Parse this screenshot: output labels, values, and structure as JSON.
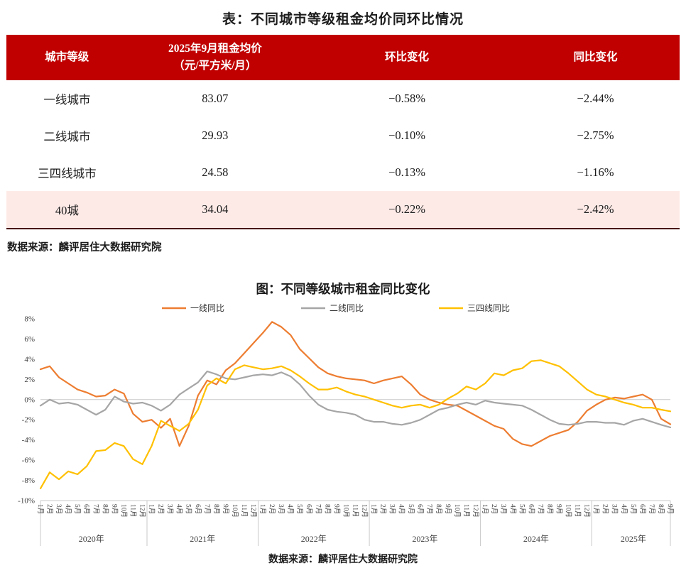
{
  "table": {
    "title": "表：不同城市等级租金均价同环比情况",
    "columns": [
      {
        "label": "城市等级"
      },
      {
        "label": "2025年9月租金均价",
        "sublabel": "（元/平方米/月）"
      },
      {
        "label": "环比变化"
      },
      {
        "label": "同比变化"
      }
    ],
    "rows": [
      {
        "tier": "一线城市",
        "price": "83.07",
        "mom": "−0.58%",
        "yoy": "−2.44%"
      },
      {
        "tier": "二线城市",
        "price": "29.93",
        "mom": "−0.10%",
        "yoy": "−2.75%"
      },
      {
        "tier": "三四线城市",
        "price": "24.58",
        "mom": "−0.13%",
        "yoy": "−1.16%"
      },
      {
        "tier": "40城",
        "price": "34.04",
        "mom": "−0.22%",
        "yoy": "−2.42%"
      }
    ],
    "source": "数据来源：麟评居住大数据研究院"
  },
  "chart_data": {
    "type": "line",
    "title": "图：不同等级城市租金同比变化",
    "source": "数据来源：麟评居住大数据研究院",
    "ylim": [
      -10,
      8
    ],
    "y_ticks": [
      8,
      6,
      4,
      2,
      0,
      -2,
      -4,
      -6,
      -8,
      -10
    ],
    "y_tick_suffix": "%",
    "grid": "zero-line-only",
    "legend_position": "top",
    "x_labels": [
      "1月",
      "2月",
      "3月",
      "4月",
      "5月",
      "6月",
      "7月",
      "8月",
      "9月",
      "10月",
      "11月",
      "12月",
      "1月",
      "2月",
      "3月",
      "4月",
      "5月",
      "6月",
      "7月",
      "8月",
      "9月",
      "10月",
      "11月",
      "12月",
      "1月",
      "2月",
      "3月",
      "4月",
      "5月",
      "6月",
      "7月",
      "8月",
      "9月",
      "10月",
      "11月",
      "12月",
      "1月",
      "2月",
      "3月",
      "4月",
      "5月",
      "6月",
      "7月",
      "8月",
      "9月",
      "10月",
      "11月",
      "12月",
      "1月",
      "2月",
      "3月",
      "4月",
      "5月",
      "6月",
      "7月",
      "8月",
      "9月",
      "10月",
      "11月",
      "12月",
      "1月",
      "2月",
      "3月",
      "4月",
      "5月",
      "6月",
      "7月",
      "8月",
      "9月"
    ],
    "years": [
      {
        "label": "2020年",
        "months": 12
      },
      {
        "label": "2021年",
        "months": 12
      },
      {
        "label": "2022年",
        "months": 12
      },
      {
        "label": "2023年",
        "months": 12
      },
      {
        "label": "2024年",
        "months": 12
      },
      {
        "label": "2025年",
        "months": 9
      }
    ],
    "series": [
      {
        "name": "一线同比",
        "color": "#ED7D31",
        "values": [
          3.0,
          3.3,
          2.2,
          1.6,
          1.0,
          0.7,
          0.3,
          0.4,
          1.0,
          0.6,
          -1.4,
          -2.2,
          -2.0,
          -2.8,
          -1.9,
          -4.6,
          -2.6,
          0.4,
          1.9,
          1.5,
          2.9,
          3.6,
          4.6,
          5.6,
          6.6,
          7.7,
          7.2,
          6.4,
          5.0,
          4.1,
          3.2,
          2.6,
          2.3,
          2.1,
          2.0,
          1.9,
          1.6,
          1.9,
          2.1,
          2.3,
          1.5,
          0.5,
          0.0,
          -0.3,
          -0.5,
          -0.6,
          -1.1,
          -1.6,
          -2.1,
          -2.6,
          -2.9,
          -3.9,
          -4.4,
          -4.6,
          -4.1,
          -3.6,
          -3.3,
          -3.0,
          -2.2,
          -1.1,
          -0.5,
          0.0,
          0.2,
          0.1,
          0.3,
          0.5,
          0.0,
          -1.9,
          -2.44
        ]
      },
      {
        "name": "二线同比",
        "color": "#A6A6A6",
        "values": [
          -0.6,
          0.0,
          -0.4,
          -0.3,
          -0.5,
          -1.0,
          -1.5,
          -1.0,
          0.3,
          -0.2,
          -0.4,
          -0.3,
          -0.6,
          -1.1,
          -0.5,
          0.5,
          1.1,
          1.7,
          2.8,
          2.5,
          2.1,
          2.0,
          2.2,
          2.4,
          2.5,
          2.4,
          2.7,
          2.3,
          1.5,
          0.4,
          -0.5,
          -1.0,
          -1.2,
          -1.3,
          -1.5,
          -2.0,
          -2.2,
          -2.2,
          -2.4,
          -2.5,
          -2.3,
          -2.0,
          -1.5,
          -1.0,
          -0.8,
          -0.5,
          -0.3,
          -0.5,
          -0.1,
          -0.3,
          -0.4,
          -0.5,
          -0.6,
          -1.0,
          -1.5,
          -2.0,
          -2.4,
          -2.5,
          -2.4,
          -2.2,
          -2.2,
          -2.3,
          -2.3,
          -2.5,
          -2.1,
          -1.9,
          -2.2,
          -2.5,
          -2.75
        ]
      },
      {
        "name": "三四线同比",
        "color": "#FFC000",
        "values": [
          -8.8,
          -7.2,
          -7.9,
          -7.1,
          -7.4,
          -6.6,
          -5.1,
          -5.0,
          -4.3,
          -4.6,
          -5.9,
          -6.4,
          -4.6,
          -2.1,
          -2.6,
          -3.1,
          -2.4,
          -1.0,
          1.4,
          2.1,
          1.6,
          3.0,
          3.4,
          3.2,
          3.0,
          3.1,
          3.3,
          2.9,
          2.3,
          1.6,
          1.0,
          1.0,
          1.2,
          0.8,
          0.5,
          0.3,
          0.0,
          -0.3,
          -0.6,
          -0.8,
          -0.6,
          -0.5,
          -0.8,
          -0.5,
          0.1,
          0.6,
          1.3,
          1.0,
          1.6,
          2.6,
          2.4,
          2.9,
          3.1,
          3.8,
          3.9,
          3.6,
          3.3,
          2.6,
          1.8,
          1.0,
          0.5,
          0.3,
          0.0,
          -0.3,
          -0.5,
          -0.8,
          -0.8,
          -1.0,
          -1.16
        ]
      }
    ]
  },
  "colors": {
    "header_bg": "#c00000",
    "highlight_row_bg": "#fdeae7",
    "tier1_line": "#ED7D31",
    "tier2_line": "#A6A6A6",
    "tier34_line": "#FFC000"
  }
}
